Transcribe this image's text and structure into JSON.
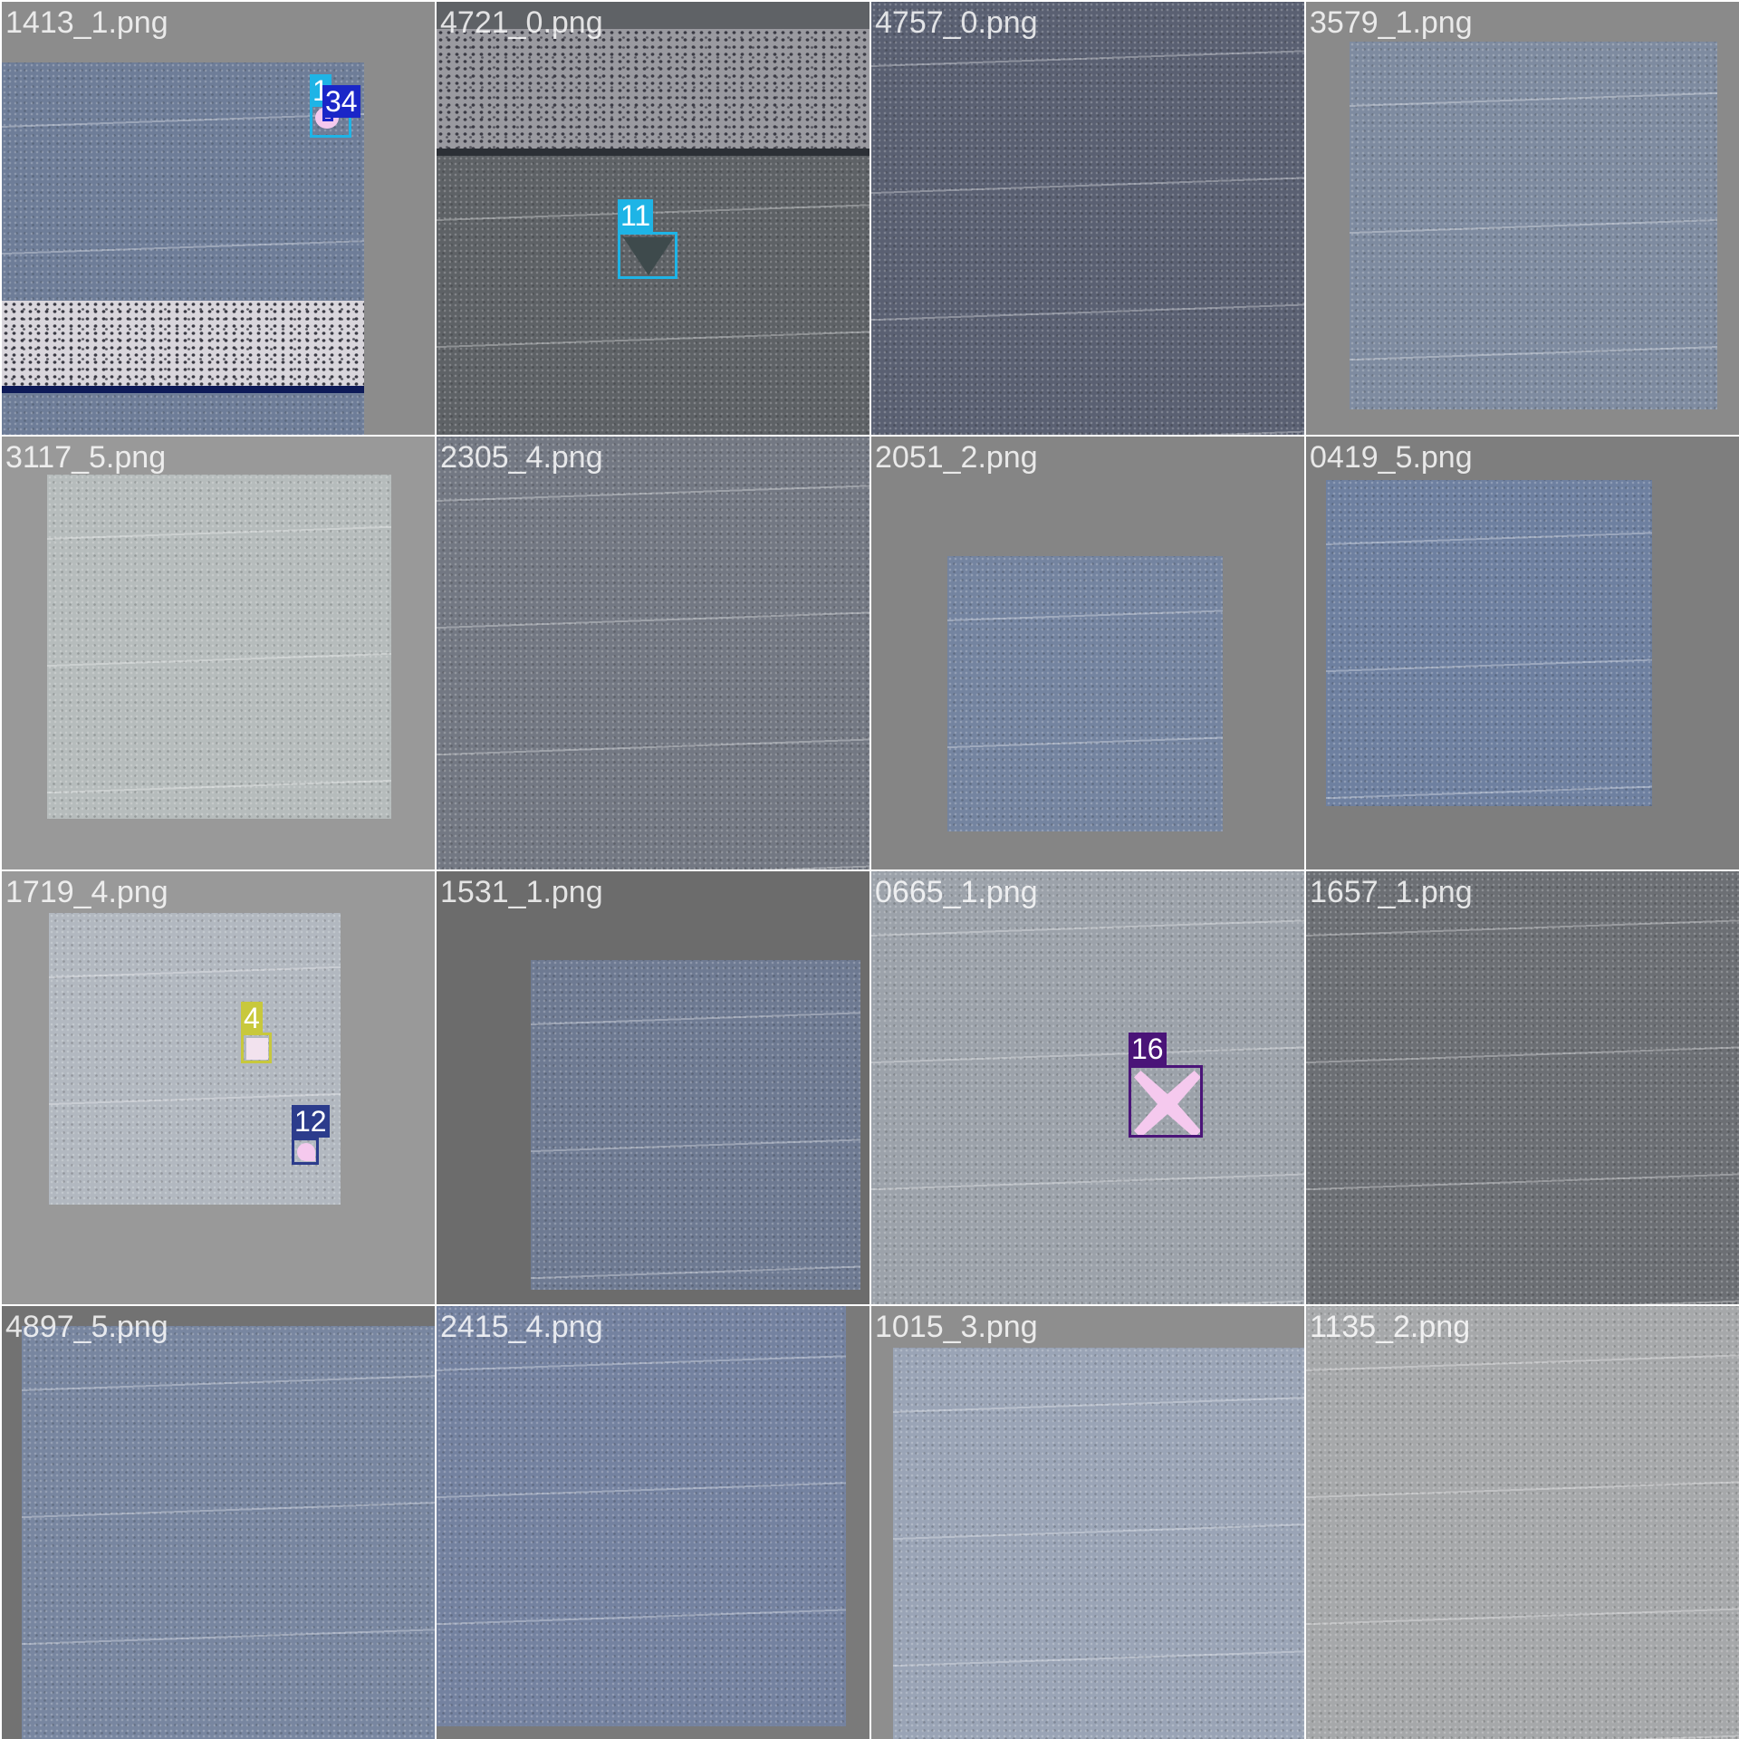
{
  "tiles": [
    {
      "name": "1413_1.png"
    },
    {
      "name": "4721_0.png"
    },
    {
      "name": "4757_0.png"
    },
    {
      "name": "3579_1.png"
    },
    {
      "name": "3117_5.png"
    },
    {
      "name": "2305_4.png"
    },
    {
      "name": "2051_2.png"
    },
    {
      "name": "0419_5.png"
    },
    {
      "name": "1719_4.png"
    },
    {
      "name": "1531_1.png"
    },
    {
      "name": "0665_1.png"
    },
    {
      "name": "1657_1.png"
    },
    {
      "name": "4897_5.png"
    },
    {
      "name": "2415_4.png"
    },
    {
      "name": "1015_3.png"
    },
    {
      "name": "1135_2.png"
    }
  ],
  "detections": {
    "t0_a": {
      "label": "1",
      "color": "#1eb4e6"
    },
    "t0_b": {
      "label": "34",
      "color": "#1a26c8"
    },
    "t1_a": {
      "label": "11",
      "color": "#1eb4e6"
    },
    "t8_a": {
      "label": "4",
      "color": "#c8c83c"
    },
    "t8_b": {
      "label": "12",
      "color": "#2c3c8c"
    },
    "t10_a": {
      "label": "16",
      "color": "#4a1478"
    }
  }
}
